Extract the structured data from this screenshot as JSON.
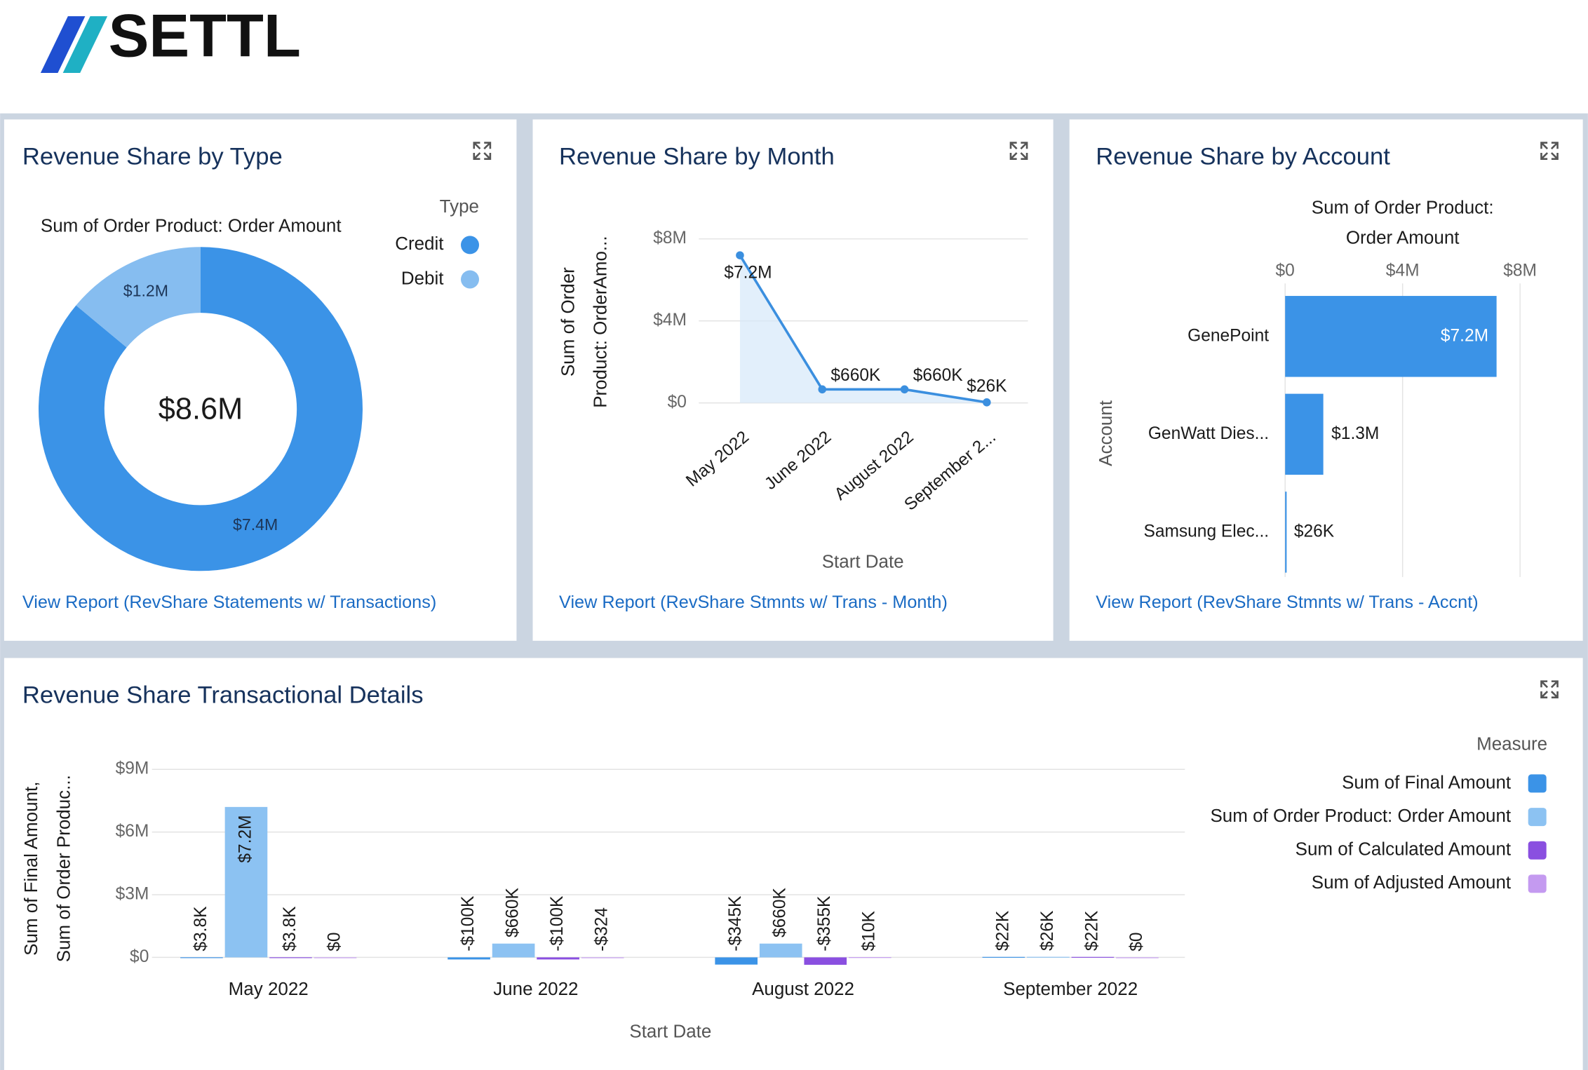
{
  "logo": "SETTL",
  "chart_data": [
    {
      "type": "pie",
      "title": "Revenue Share by Type",
      "subtitle": "Sum of Order Product: Order Amount",
      "legend_title": "Type",
      "legend": "top-right",
      "categories": [
        "Credit",
        "Debit"
      ],
      "values": [
        7400000,
        1200000
      ],
      "value_labels": [
        "$7.4M",
        "$1.2M"
      ],
      "colors": [
        "#3b93e7",
        "#86bdf0"
      ],
      "total_label": "$8.6M",
      "link": "View Report (RevShare Statements w/ Transactions)"
    },
    {
      "type": "line",
      "title": "Revenue Share by Month",
      "categories": [
        "May 2022",
        "June 2022",
        "August 2022",
        "September 2..."
      ],
      "values": [
        7200000,
        660000,
        660000,
        26000
      ],
      "value_labels": [
        "$7.2M",
        "$660K",
        "$660K",
        "$26K"
      ],
      "color": "#3b8fdf",
      "ylim": [
        0,
        8000000
      ],
      "yticks": [
        {
          "value": 0,
          "label": "$0"
        },
        {
          "value": 4000000,
          "label": "$4M"
        },
        {
          "value": 8000000,
          "label": "$8M"
        }
      ],
      "xlabel": "Start Date",
      "ylabel": [
        "Sum of Order",
        "Product: OrderAmo..."
      ],
      "grid": true,
      "link": "View Report (RevShare Stmnts w/ Trans - Month)"
    },
    {
      "type": "bar",
      "orientation": "horizontal",
      "title": "Revenue Share by Account",
      "subtitle": [
        "Sum of Order Product:",
        "Order Amount"
      ],
      "categories": [
        "GenePoint",
        "GenWatt Dies...",
        "Samsung Elec..."
      ],
      "values": [
        7200000,
        1300000,
        26000
      ],
      "value_labels": [
        "$7.2M",
        "$1.3M",
        "$26K"
      ],
      "color": "#3b93e7",
      "xlim": [
        0,
        8000000
      ],
      "xticks": [
        {
          "value": 0,
          "label": "$0"
        },
        {
          "value": 4000000,
          "label": "$4M"
        },
        {
          "value": 8000000,
          "label": "$8M"
        }
      ],
      "ylabel": "Account",
      "grid": true,
      "link": "View Report (RevShare Stmnts w/ Trans - Accnt)"
    },
    {
      "type": "bar",
      "title": "Revenue Share Transactional Details",
      "categories": [
        "May 2022",
        "June 2022",
        "August 2022",
        "September 2022"
      ],
      "series": [
        {
          "name": "Sum of Final Amount",
          "color": "#3b93e7",
          "values": [
            3800,
            -100000,
            -345000,
            22000
          ],
          "value_labels": [
            "$3.8K",
            "-$100K",
            "-$345K",
            "$22K"
          ]
        },
        {
          "name": "Sum of Order Product: Order Amount",
          "color": "#8cc2f2",
          "values": [
            7200000,
            660000,
            660000,
            26000
          ],
          "value_labels": [
            "$7.2M",
            "$660K",
            "$660K",
            "$26K"
          ]
        },
        {
          "name": "Sum of Calculated Amount",
          "color": "#8a4fe0",
          "values": [
            3800,
            -100000,
            -355000,
            22000
          ],
          "value_labels": [
            "$3.8K",
            "-$100K",
            "-$355K",
            "$22K"
          ]
        },
        {
          "name": "Sum of Adjusted Amount",
          "color": "#c49af0",
          "values": [
            0,
            -324,
            10000,
            0
          ],
          "value_labels": [
            "$0",
            "-$324",
            "$10K",
            "$0"
          ]
        }
      ],
      "ylim": [
        -400000,
        9000000
      ],
      "yticks": [
        {
          "value": 0,
          "label": "$0"
        },
        {
          "value": 3000000,
          "label": "$3M"
        },
        {
          "value": 6000000,
          "label": "$6M"
        },
        {
          "value": 9000000,
          "label": "$9M"
        }
      ],
      "xlabel": "Start Date",
      "ylabel": [
        "Sum of Final Amount,",
        "Sum of Order Produc..."
      ],
      "legend_title": "Measure",
      "legend": "top-right",
      "grid": true
    }
  ]
}
